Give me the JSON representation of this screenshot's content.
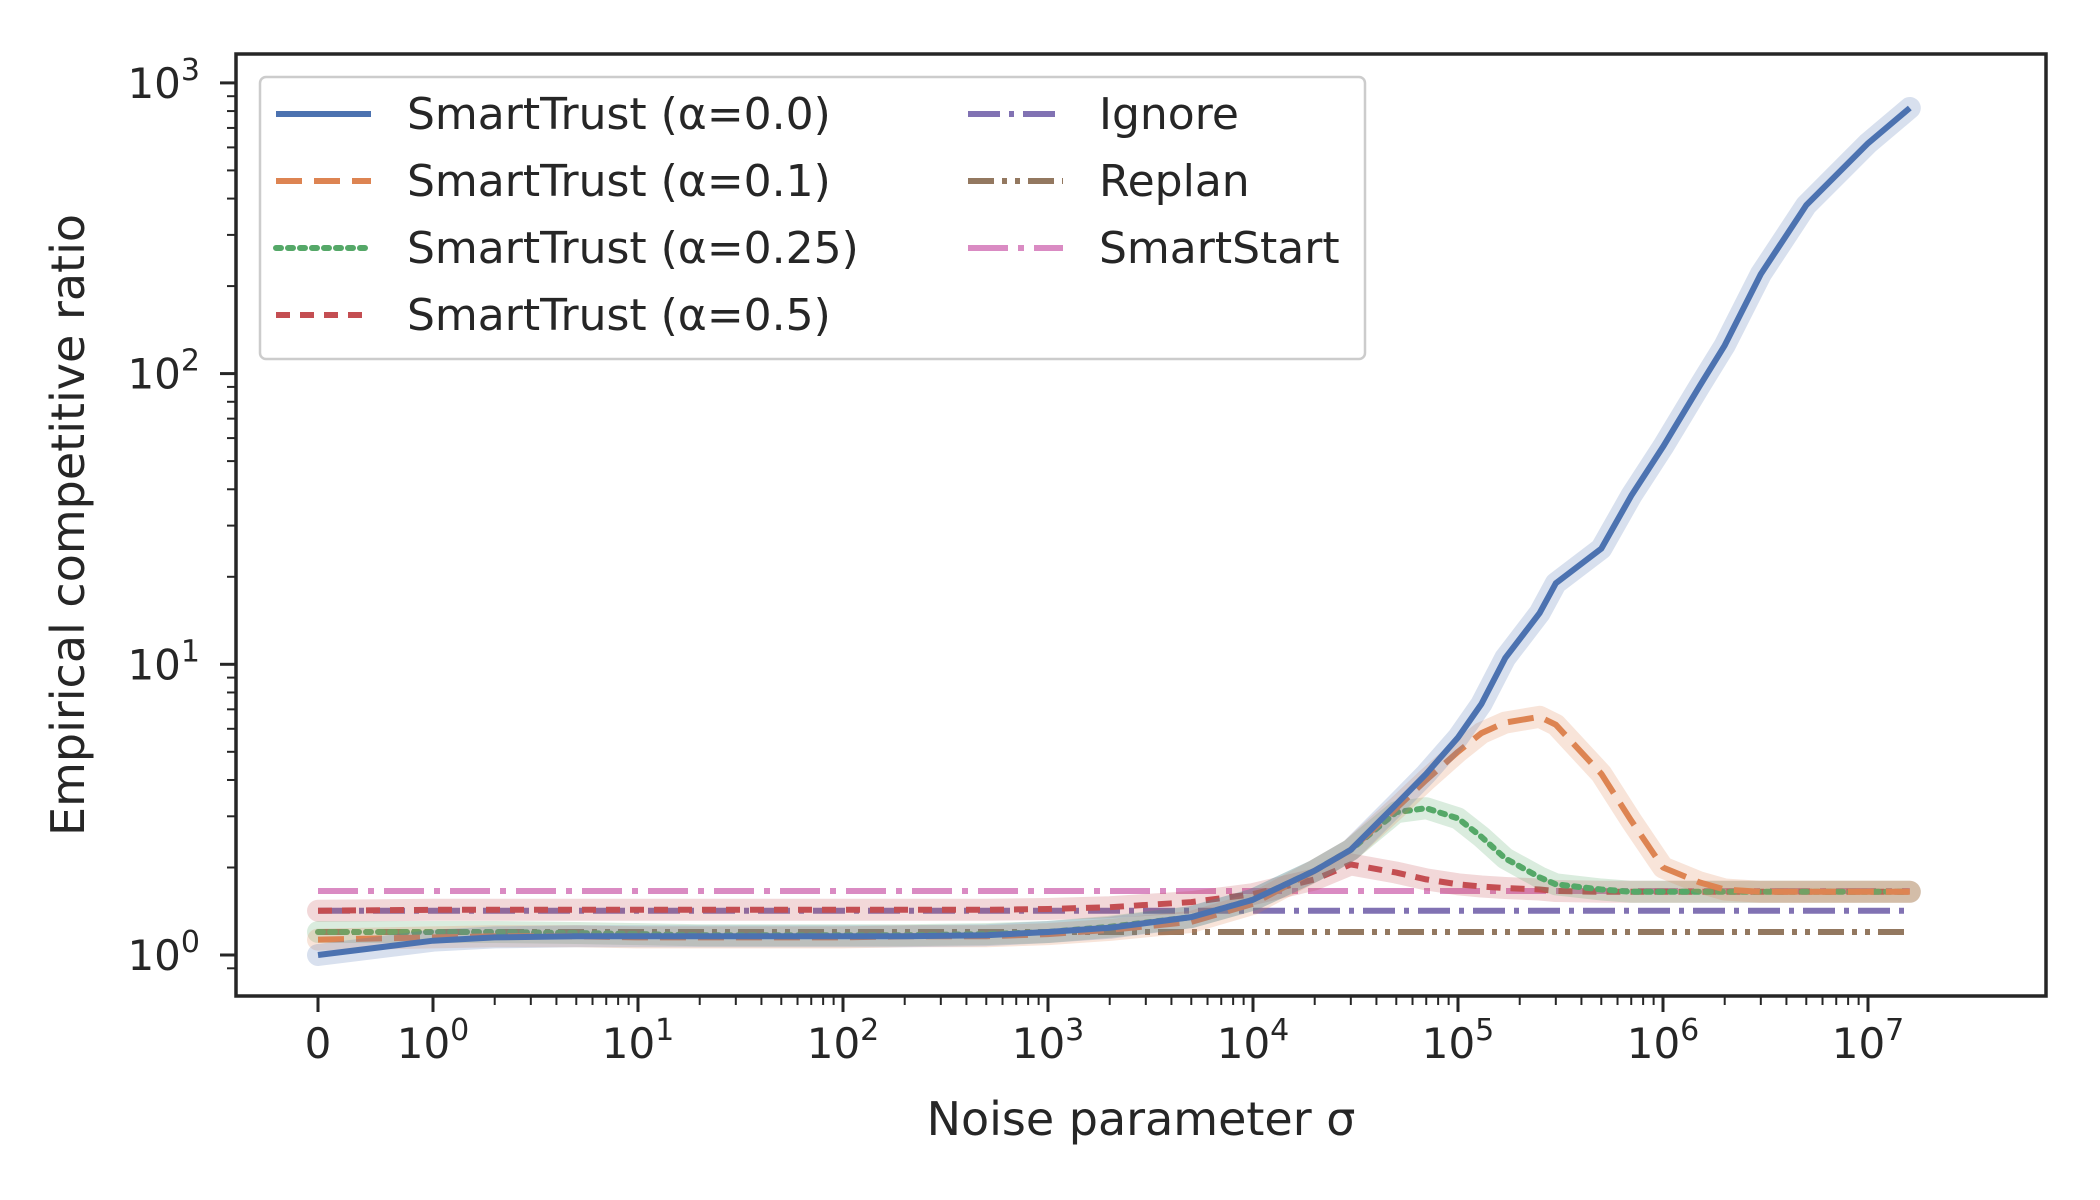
{
  "chart_data": {
    "type": "line",
    "title": "",
    "xlabel": "Noise parameter σ",
    "ylabel": "Empirical competitive ratio",
    "xscale": "symlog",
    "yscale": "log",
    "ylim": [
      0.85,
      1000
    ],
    "x_ticks": [
      {
        "value": 0,
        "base": "0",
        "exp": ""
      },
      {
        "value": 1,
        "base": "10",
        "exp": "0"
      },
      {
        "value": 10,
        "base": "10",
        "exp": "1"
      },
      {
        "value": 100,
        "base": "10",
        "exp": "2"
      },
      {
        "value": 1000,
        "base": "10",
        "exp": "3"
      },
      {
        "value": 10000,
        "base": "10",
        "exp": "4"
      },
      {
        "value": 100000,
        "base": "10",
        "exp": "5"
      },
      {
        "value": 1000000,
        "base": "10",
        "exp": "6"
      },
      {
        "value": 10000000,
        "base": "10",
        "exp": "7"
      }
    ],
    "y_ticks": [
      {
        "value": 1,
        "base": "10",
        "exp": "0"
      },
      {
        "value": 10,
        "base": "10",
        "exp": "1"
      },
      {
        "value": 100,
        "base": "10",
        "exp": "2"
      },
      {
        "value": 1000,
        "base": "10",
        "exp": "3"
      }
    ],
    "grid": false,
    "legend_position": "top-left",
    "x": [
      0,
      1,
      2,
      5,
      10,
      20,
      50,
      100,
      200,
      500,
      1000,
      2000,
      5000,
      10000,
      20000,
      30000,
      50000,
      70000,
      100000,
      130000,
      170000,
      250000,
      300000,
      500000,
      700000,
      1000000,
      1500000,
      2000000,
      3000000,
      5000000,
      10000000,
      16000000
    ],
    "series": [
      {
        "name": "SmartTrust (α=0.0)",
        "color": "#4c72b0",
        "dash": "solid",
        "band": true,
        "values": [
          1.0,
          1.12,
          1.15,
          1.16,
          1.16,
          1.16,
          1.16,
          1.16,
          1.16,
          1.17,
          1.2,
          1.24,
          1.35,
          1.55,
          1.95,
          2.3,
          3.3,
          4.2,
          5.6,
          7.3,
          10.5,
          15,
          19,
          25,
          38,
          56,
          90,
          125,
          220,
          380,
          620,
          820
        ]
      },
      {
        "name": "SmartTrust (α=0.1)",
        "color": "#dd8452",
        "dash": "dashed",
        "band": true,
        "values": [
          1.13,
          1.15,
          1.16,
          1.16,
          1.15,
          1.15,
          1.15,
          1.15,
          1.16,
          1.16,
          1.18,
          1.22,
          1.3,
          1.5,
          1.95,
          2.3,
          3.2,
          4.0,
          5.0,
          5.8,
          6.3,
          6.6,
          6.2,
          4.2,
          2.9,
          2.0,
          1.78,
          1.68,
          1.65,
          1.65,
          1.65,
          1.65
        ]
      },
      {
        "name": "SmartTrust (α=0.25)",
        "color": "#55a868",
        "dash": "dotted",
        "band": true,
        "values": [
          1.2,
          1.2,
          1.2,
          1.19,
          1.18,
          1.17,
          1.17,
          1.17,
          1.17,
          1.18,
          1.2,
          1.25,
          1.35,
          1.55,
          1.95,
          2.3,
          3.1,
          3.2,
          2.95,
          2.55,
          2.15,
          1.85,
          1.75,
          1.68,
          1.65,
          1.65,
          1.65,
          1.65,
          1.65,
          1.65,
          1.65,
          1.65
        ]
      },
      {
        "name": "SmartTrust (α=0.5)",
        "color": "#c44e52",
        "dash": "loosedash",
        "band": true,
        "values": [
          1.42,
          1.43,
          1.43,
          1.43,
          1.43,
          1.43,
          1.43,
          1.43,
          1.43,
          1.43,
          1.44,
          1.46,
          1.52,
          1.62,
          1.82,
          2.05,
          1.92,
          1.82,
          1.75,
          1.72,
          1.7,
          1.68,
          1.66,
          1.65,
          1.65,
          1.65,
          1.65,
          1.65,
          1.65,
          1.65,
          1.65,
          1.65
        ]
      },
      {
        "name": "Ignore",
        "color": "#8172b3",
        "dash": "dashdot",
        "band": false,
        "values": [
          1.42,
          1.42,
          1.42,
          1.42,
          1.42,
          1.42,
          1.42,
          1.42,
          1.42,
          1.42,
          1.42,
          1.42,
          1.42,
          1.42,
          1.42,
          1.42,
          1.42,
          1.42,
          1.42,
          1.42,
          1.42,
          1.42,
          1.42,
          1.42,
          1.42,
          1.42,
          1.42,
          1.42,
          1.42,
          1.42,
          1.42,
          1.42
        ]
      },
      {
        "name": "Replan",
        "color": "#937860",
        "dash": "dashdotdot",
        "band": false,
        "values": [
          1.2,
          1.2,
          1.2,
          1.2,
          1.2,
          1.2,
          1.2,
          1.2,
          1.2,
          1.2,
          1.2,
          1.2,
          1.2,
          1.2,
          1.2,
          1.2,
          1.2,
          1.2,
          1.2,
          1.2,
          1.2,
          1.2,
          1.2,
          1.2,
          1.2,
          1.2,
          1.2,
          1.2,
          1.2,
          1.2,
          1.2,
          1.2
        ]
      },
      {
        "name": "SmartStart",
        "color": "#da8bc3",
        "dash": "longdashdot",
        "band": false,
        "values": [
          1.66,
          1.66,
          1.66,
          1.66,
          1.66,
          1.66,
          1.66,
          1.66,
          1.66,
          1.66,
          1.66,
          1.66,
          1.66,
          1.66,
          1.66,
          1.66,
          1.66,
          1.66,
          1.66,
          1.66,
          1.66,
          1.66,
          1.66,
          1.66,
          1.66,
          1.66,
          1.66,
          1.66,
          1.66,
          1.66,
          1.66,
          1.66
        ]
      }
    ]
  }
}
